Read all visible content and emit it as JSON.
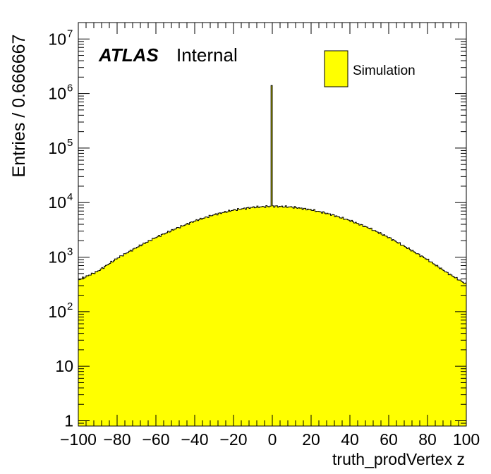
{
  "chart_data": {
    "type": "histogram",
    "title": "",
    "xlabel": "truth_prodVertex z",
    "ylabel": "Entries / 0.666667",
    "xlim": [
      -100,
      100
    ],
    "ylim_log": [
      0.8,
      20000000
    ],
    "log_y": true,
    "bin_width": 0.666667,
    "fill_color": "#ffff00",
    "line_color": "#000000",
    "x_ticks": [
      {
        "v": -100,
        "label": "−100"
      },
      {
        "v": -80,
        "label": "−80"
      },
      {
        "v": -60,
        "label": "−60"
      },
      {
        "v": -40,
        "label": "−40"
      },
      {
        "v": -20,
        "label": "−20"
      },
      {
        "v": 0,
        "label": "0"
      },
      {
        "v": 20,
        "label": "20"
      },
      {
        "v": 40,
        "label": "40"
      },
      {
        "v": 60,
        "label": "60"
      },
      {
        "v": 80,
        "label": "80"
      },
      {
        "v": 100,
        "label": "100"
      }
    ],
    "y_ticks": [
      {
        "v": 1,
        "base": "1",
        "exp": ""
      },
      {
        "v": 10,
        "base": "10",
        "exp": ""
      },
      {
        "v": 100,
        "base": "10",
        "exp": "2"
      },
      {
        "v": 1000,
        "base": "10",
        "exp": "3"
      },
      {
        "v": 10000,
        "base": "10",
        "exp": "4"
      },
      {
        "v": 100000,
        "base": "10",
        "exp": "5"
      },
      {
        "v": 1000000,
        "base": "10",
        "exp": "6"
      },
      {
        "v": 10000000,
        "base": "10",
        "exp": "7"
      }
    ],
    "series": [
      {
        "name": "Simulation",
        "profile_x": [
          -100,
          -90,
          -80,
          -70,
          -60,
          -50,
          -40,
          -30,
          -20,
          -10,
          0,
          10,
          20,
          30,
          40,
          50,
          60,
          70,
          80,
          90,
          100
        ],
        "profile_y": [
          380,
          550,
          950,
          1500,
          2300,
          3300,
          4600,
          6000,
          7300,
          8200,
          8600,
          8300,
          7400,
          6100,
          4700,
          3400,
          2300,
          1450,
          900,
          520,
          320
        ],
        "spike": {
          "x": 0,
          "value": 1400000
        }
      }
    ],
    "legend": {
      "position": "top-right",
      "entries": [
        {
          "label": "Simulation",
          "color": "#ffff00"
        }
      ]
    },
    "annotation": {
      "bold": "ATLAS",
      "text": "Internal"
    }
  }
}
